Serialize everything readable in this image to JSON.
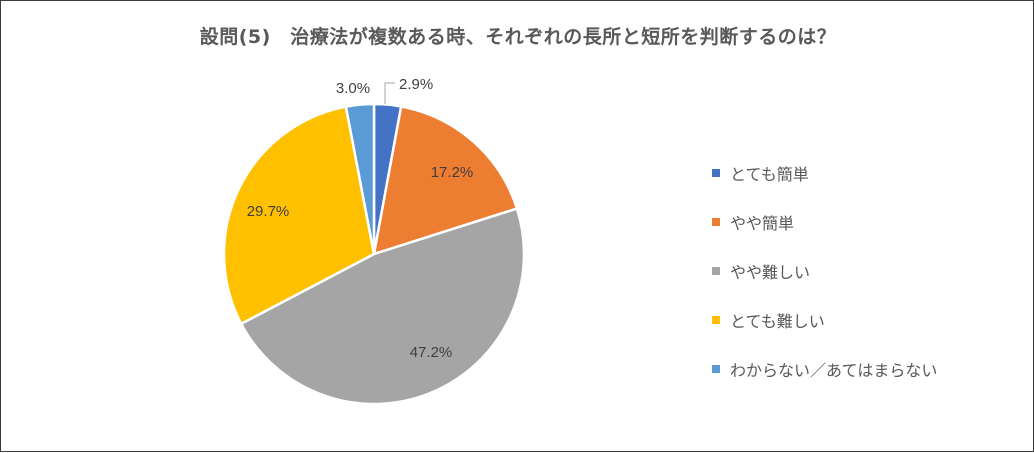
{
  "chart_data": {
    "type": "pie",
    "title": "設問(5)　治療法が複数ある時、それぞれの長所と短所を判断するのは？",
    "categories": [
      "とても簡単",
      "やや簡単",
      "やや難しい",
      "とても難しい",
      "わからない／あてはまらない"
    ],
    "values": [
      2.9,
      17.2,
      47.2,
      29.7,
      3.0
    ],
    "labels": [
      "2.9%",
      "17.2%",
      "47.2%",
      "29.7%",
      "3.0%"
    ],
    "colors": [
      "#4472C4",
      "#ED7D31",
      "#A5A5A5",
      "#FFC000",
      "#5B9BD5"
    ],
    "start_angle": "12 o'clock",
    "direction": "clockwise",
    "legend": "right"
  }
}
